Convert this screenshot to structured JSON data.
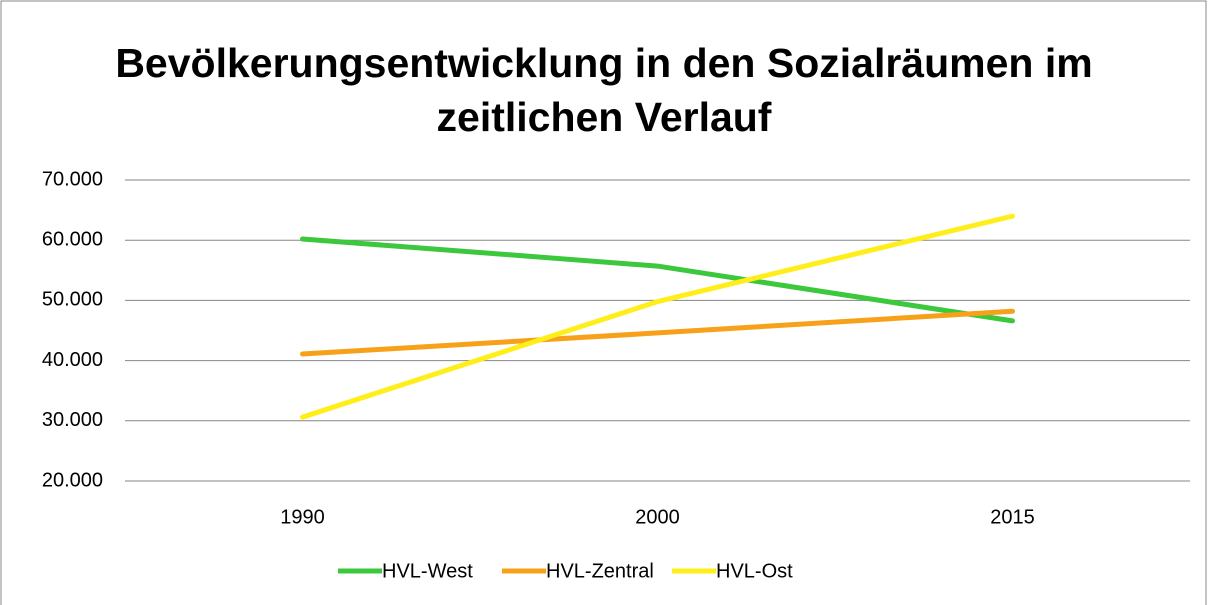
{
  "chart_data": {
    "type": "line",
    "title": "Bevölkerungsentwicklung in den Sozialräumen im zeitlichen Verlauf",
    "categories": [
      "1990",
      "2000",
      "2015"
    ],
    "series": [
      {
        "name": "HVL-West",
        "color": "#3cc83c",
        "values": [
          60200,
          55700,
          46600
        ]
      },
      {
        "name": "HVL-Zentral",
        "color": "#f7a11a",
        "values": [
          41100,
          44600,
          48200
        ]
      },
      {
        "name": "HVL-Ost",
        "color": "#ffee1a",
        "values": [
          30600,
          49800,
          64000
        ]
      }
    ],
    "ylim": [
      20000,
      70000
    ],
    "yticks": [
      {
        "value": 20000,
        "label": "20.000"
      },
      {
        "value": 30000,
        "label": "30.000"
      },
      {
        "value": 40000,
        "label": "40.000"
      },
      {
        "value": 50000,
        "label": "50.000"
      },
      {
        "value": 60000,
        "label": "60.000"
      },
      {
        "value": 70000,
        "label": "70.000"
      }
    ],
    "grid": true,
    "legend": "bottom"
  }
}
